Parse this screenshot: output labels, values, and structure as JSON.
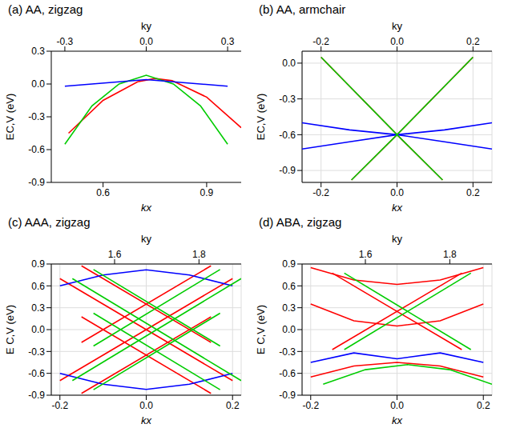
{
  "chart_data": [
    {
      "type": "line",
      "title": "(a) AA, zigzag",
      "xlabel": "kx",
      "x2label": "ky",
      "ylabel": "EC,V (eV)",
      "grid": false,
      "xlim": [
        0.45,
        1.0
      ],
      "xticks": [
        0.6,
        0.9
      ],
      "x2lim": [
        -0.35,
        0.35
      ],
      "x2ticks": [
        -0.3,
        {
          "value": 0,
          "label": "0.0"
        },
        0.3
      ],
      "ylim": [
        -0.9,
        0.3
      ],
      "yticks": [
        -0.9,
        -0.6,
        -0.3,
        {
          "value": 0,
          "label": "0.0"
        },
        0.3
      ],
      "series": [
        {
          "color": "#ff0000",
          "axis": "x",
          "x": [
            0.5,
            0.6,
            0.7,
            0.75,
            0.8,
            0.9,
            1.0
          ],
          "values": [
            -0.45,
            -0.15,
            0.02,
            0.05,
            0.03,
            -0.12,
            -0.4
          ]
        },
        {
          "color": "#00cc00",
          "axis": "x2",
          "x": [
            -0.3,
            -0.2,
            -0.1,
            0,
            0.1,
            0.2,
            0.3
          ],
          "values": [
            -0.55,
            -0.2,
            0.0,
            0.08,
            0.0,
            -0.2,
            -0.55
          ]
        },
        {
          "color": "#0000ff",
          "axis": "x2",
          "x": [
            -0.3,
            0,
            0.3
          ],
          "values": [
            -0.02,
            0.04,
            -0.02
          ]
        }
      ]
    },
    {
      "type": "line",
      "title": "(b) AA, armchair",
      "xlabel": "kx",
      "x2label": "ky",
      "ylabel": "EC,V (eV)",
      "grid": true,
      "xlim": [
        -0.25,
        0.25
      ],
      "xticks": [
        -0.2,
        {
          "value": 0,
          "label": "0.0"
        },
        0.2
      ],
      "x2lim": [
        -0.25,
        0.25
      ],
      "x2ticks": [
        -0.2,
        {
          "value": 0,
          "label": "0.0"
        },
        0.2
      ],
      "ylim": [
        -1.0,
        0.1
      ],
      "yticks": [
        -0.9,
        -0.6,
        -0.3,
        {
          "value": 0,
          "label": "0.0"
        }
      ],
      "series": [
        {
          "color": "#ff0000",
          "axis": "x",
          "x": [
            -0.2,
            0,
            0.2
          ],
          "values": [
            0.05,
            -0.6,
            0.05
          ]
        },
        {
          "color": "#ff0000",
          "axis": "x",
          "x": [
            -0.12,
            0,
            0.12
          ],
          "values": [
            -0.98,
            -0.6,
            -0.98
          ]
        },
        {
          "color": "#0000ff",
          "axis": "x",
          "x": [
            -0.25,
            -0.125,
            0,
            0.125,
            0.25
          ],
          "values": [
            -0.5,
            -0.56,
            -0.6,
            -0.56,
            -0.5
          ]
        },
        {
          "color": "#0000ff",
          "axis": "x",
          "x": [
            -0.25,
            -0.125,
            0,
            0.125,
            0.25
          ],
          "values": [
            -0.72,
            -0.66,
            -0.6,
            -0.66,
            -0.72
          ]
        },
        {
          "color": "#00cc00",
          "axis": "x2",
          "x": [
            -0.2,
            0,
            0.2
          ],
          "values": [
            0.05,
            -0.6,
            0.05
          ]
        },
        {
          "color": "#00cc00",
          "axis": "x2",
          "x": [
            -0.12,
            0,
            0.12
          ],
          "values": [
            -0.98,
            -0.6,
            -0.98
          ]
        }
      ]
    },
    {
      "type": "line",
      "title": "(c) AAA, zigzag",
      "xlabel": "kx",
      "x2label": "ky",
      "ylabel": "E C,V (eV)",
      "grid": true,
      "xlim": [
        -0.22,
        0.22
      ],
      "xticks": [
        -0.2,
        {
          "value": 0,
          "label": "0.0"
        },
        0.2
      ],
      "x2lim": [
        1.45,
        1.9
      ],
      "x2ticks": [
        1.6,
        1.8
      ],
      "ylim": [
        -0.9,
        0.9
      ],
      "yticks": [
        -0.9,
        -0.6,
        -0.3,
        {
          "value": 0,
          "label": "0.0"
        },
        0.3,
        0.6,
        0.9
      ],
      "series": [
        {
          "color": "#ff0000",
          "axis": "x",
          "x": [
            -0.2,
            0.2
          ],
          "values": [
            -0.7,
            0.7
          ]
        },
        {
          "color": "#ff0000",
          "axis": "x",
          "x": [
            -0.2,
            0.2
          ],
          "values": [
            0.7,
            -0.7
          ]
        },
        {
          "color": "#ff0000",
          "axis": "x",
          "x": [
            -0.15,
            0.15
          ],
          "values": [
            -0.175,
            0.875
          ]
        },
        {
          "color": "#ff0000",
          "axis": "x",
          "x": [
            -0.15,
            0.15
          ],
          "values": [
            0.875,
            -0.175
          ]
        },
        {
          "color": "#ff0000",
          "axis": "x",
          "x": [
            -0.15,
            0.15
          ],
          "values": [
            -0.875,
            0.175
          ]
        },
        {
          "color": "#ff0000",
          "axis": "x",
          "x": [
            -0.15,
            0.15
          ],
          "values": [
            0.175,
            -0.875
          ]
        },
        {
          "color": "#0000ff",
          "axis": "x",
          "x": [
            -0.2,
            -0.1,
            0,
            0.1,
            0.2
          ],
          "values": [
            0.6,
            0.75,
            0.82,
            0.75,
            0.6
          ]
        },
        {
          "color": "#0000ff",
          "axis": "x",
          "x": [
            -0.2,
            -0.1,
            0,
            0.1,
            0.2
          ],
          "values": [
            -0.6,
            -0.75,
            -0.82,
            -0.75,
            -0.6
          ]
        },
        {
          "color": "#00cc00",
          "axis": "x2",
          "x": [
            1.5,
            1.9
          ],
          "values": [
            -0.7,
            0.7
          ]
        },
        {
          "color": "#00cc00",
          "axis": "x2",
          "x": [
            1.5,
            1.9
          ],
          "values": [
            0.7,
            -0.7
          ]
        },
        {
          "color": "#00cc00",
          "axis": "x2",
          "x": [
            1.55,
            1.85
          ],
          "values": [
            -0.225,
            0.825
          ]
        },
        {
          "color": "#00cc00",
          "axis": "x2",
          "x": [
            1.55,
            1.85
          ],
          "values": [
            0.825,
            -0.225
          ]
        },
        {
          "color": "#00cc00",
          "axis": "x2",
          "x": [
            1.55,
            1.85
          ],
          "values": [
            -0.825,
            0.225
          ]
        },
        {
          "color": "#00cc00",
          "axis": "x2",
          "x": [
            1.55,
            1.85
          ],
          "values": [
            0.225,
            -0.825
          ]
        }
      ]
    },
    {
      "type": "line",
      "title": "(d) ABA, zigzag",
      "xlabel": "kx",
      "x2label": "ky",
      "ylabel": "E C,V (eV)",
      "grid": true,
      "xlim": [
        -0.22,
        0.22
      ],
      "xticks": [
        -0.2,
        {
          "value": 0,
          "label": "0.0"
        },
        0.2
      ],
      "x2lim": [
        1.45,
        1.9
      ],
      "x2ticks": [
        1.6,
        1.8
      ],
      "ylim": [
        -0.9,
        0.9
      ],
      "yticks": [
        -0.9,
        -0.6,
        -0.3,
        {
          "value": 0,
          "label": "0.0"
        },
        0.3,
        0.6,
        0.9
      ],
      "series": [
        {
          "color": "#ff0000",
          "axis": "x",
          "x": [
            -0.15,
            0.15
          ],
          "values": [
            -0.275,
            0.775
          ]
        },
        {
          "color": "#ff0000",
          "axis": "x",
          "x": [
            -0.15,
            0.15
          ],
          "values": [
            0.775,
            -0.275
          ]
        },
        {
          "color": "#ff0000",
          "axis": "x",
          "x": [
            -0.2,
            -0.1,
            0,
            0.1,
            0.2
          ],
          "values": [
            -0.65,
            -0.5,
            -0.45,
            -0.5,
            -0.65
          ]
        },
        {
          "color": "#ff0000",
          "axis": "x",
          "x": [
            -0.2,
            -0.1,
            0,
            0.1,
            0.2
          ],
          "values": [
            0.35,
            0.12,
            0.05,
            0.12,
            0.35
          ]
        },
        {
          "color": "#ff0000",
          "axis": "x",
          "x": [
            -0.2,
            -0.1,
            0,
            0.1,
            0.2
          ],
          "values": [
            0.85,
            0.68,
            0.62,
            0.68,
            0.85
          ]
        },
        {
          "color": "#0000ff",
          "axis": "x",
          "x": [
            -0.2,
            -0.1,
            0,
            0.1,
            0.2
          ],
          "values": [
            -0.45,
            -0.32,
            -0.4,
            -0.32,
            -0.45
          ]
        },
        {
          "color": "#00cc00",
          "axis": "x2",
          "x": [
            1.55,
            1.85
          ],
          "values": [
            -0.275,
            0.775
          ]
        },
        {
          "color": "#00cc00",
          "axis": "x2",
          "x": [
            1.55,
            1.85
          ],
          "values": [
            0.775,
            -0.275
          ]
        },
        {
          "color": "#00cc00",
          "axis": "x2",
          "x": [
            1.5,
            1.6,
            1.7,
            1.8,
            1.9
          ],
          "values": [
            -0.75,
            -0.55,
            -0.48,
            -0.55,
            -0.75
          ]
        }
      ]
    }
  ]
}
